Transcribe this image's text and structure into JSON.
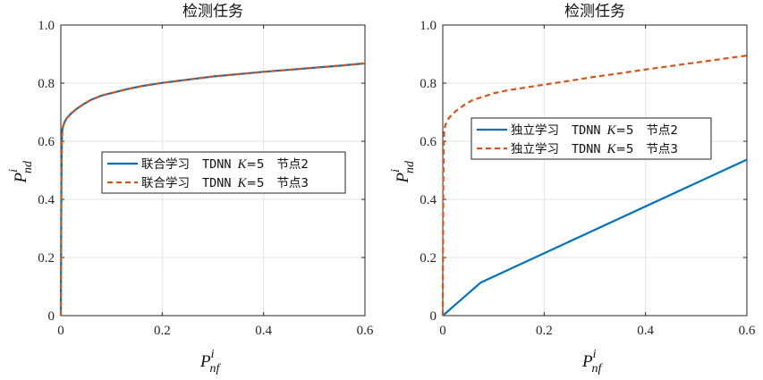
{
  "chart_data": [
    {
      "type": "line",
      "title": "检测任务",
      "xlabel": "P_nf^i",
      "ylabel": "P_nd^i",
      "xlim": [
        0,
        0.6
      ],
      "ylim": [
        0,
        1.0
      ],
      "xticks": [
        "0",
        "0.2",
        "0.4",
        "0.6"
      ],
      "xtick_values": [
        0,
        0.2,
        0.4,
        0.6
      ],
      "yticks": [
        "0",
        "0.2",
        "0.4",
        "0.6",
        "0.8",
        "1.0"
      ],
      "ytick_values": [
        0,
        0.2,
        0.4,
        0.6,
        0.8,
        1.0
      ],
      "grid": true,
      "legend_position": "center-right",
      "series": [
        {
          "name": "联合学习 TDNN K=5 节点2",
          "legend_parts": [
            "联合学习",
            "TDNN",
            "K",
            "=5",
            "节点2"
          ],
          "color": "#0072BD",
          "style": "solid",
          "x": [
            0,
            0.0005,
            0.001,
            0.002,
            0.003,
            0.005,
            0.008,
            0.012,
            0.02,
            0.03,
            0.045,
            0.06,
            0.08,
            0.1,
            0.13,
            0.16,
            0.2,
            0.25,
            0.3,
            0.35,
            0.4,
            0.45,
            0.5,
            0.55,
            0.6
          ],
          "y": [
            0,
            0.2,
            0.45,
            0.6,
            0.64,
            0.655,
            0.668,
            0.68,
            0.695,
            0.71,
            0.728,
            0.743,
            0.757,
            0.766,
            0.779,
            0.79,
            0.801,
            0.812,
            0.823,
            0.831,
            0.839,
            0.846,
            0.853,
            0.86,
            0.868
          ]
        },
        {
          "name": "联合学习 TDNN K=5 节点3",
          "legend_parts": [
            "联合学习",
            "TDNN",
            "K",
            "=5",
            "节点3"
          ],
          "color": "#D95319",
          "style": "dashed",
          "x": [
            0,
            0.0005,
            0.001,
            0.002,
            0.003,
            0.005,
            0.008,
            0.012,
            0.02,
            0.03,
            0.045,
            0.06,
            0.08,
            0.1,
            0.13,
            0.16,
            0.2,
            0.25,
            0.3,
            0.35,
            0.4,
            0.45,
            0.5,
            0.55,
            0.6
          ],
          "y": [
            0,
            0.2,
            0.45,
            0.6,
            0.64,
            0.655,
            0.668,
            0.68,
            0.695,
            0.71,
            0.728,
            0.743,
            0.757,
            0.766,
            0.779,
            0.79,
            0.801,
            0.812,
            0.823,
            0.831,
            0.839,
            0.846,
            0.853,
            0.86,
            0.868
          ]
        }
      ]
    },
    {
      "type": "line",
      "title": "检测任务",
      "xlabel": "P_nf^i",
      "ylabel": "P_nd^i",
      "xlim": [
        0,
        0.6
      ],
      "ylim": [
        0,
        1.0
      ],
      "xticks": [
        "0",
        "0.2",
        "0.4",
        "0.6"
      ],
      "xtick_values": [
        0,
        0.2,
        0.4,
        0.6
      ],
      "yticks": [
        "0",
        "0.2",
        "0.4",
        "0.6",
        "0.8",
        "1.0"
      ],
      "ytick_values": [
        0,
        0.2,
        0.4,
        0.6,
        0.8,
        1.0
      ],
      "grid": true,
      "legend_position": "upper-center",
      "series": [
        {
          "name": "独立学习 TDNN K=5 节点2",
          "legend_parts": [
            "独立学习",
            "TDNN",
            "K",
            "=5",
            "节点2"
          ],
          "color": "#0072BD",
          "style": "solid",
          "x": [
            0,
            0.075,
            0.6
          ],
          "y": [
            0,
            0.114,
            0.537
          ]
        },
        {
          "name": "独立学习 TDNN K=5 节点3",
          "legend_parts": [
            "独立学习",
            "TDNN",
            "K",
            "=5",
            "节点3"
          ],
          "color": "#D95319",
          "style": "dashed",
          "x": [
            0,
            0.0005,
            0.001,
            0.002,
            0.003,
            0.005,
            0.008,
            0.012,
            0.02,
            0.03,
            0.045,
            0.06,
            0.08,
            0.1,
            0.13,
            0.16,
            0.2,
            0.25,
            0.3,
            0.35,
            0.4,
            0.45,
            0.5,
            0.55,
            0.6
          ],
          "y": [
            0,
            0.2,
            0.45,
            0.6,
            0.64,
            0.655,
            0.668,
            0.68,
            0.695,
            0.71,
            0.728,
            0.743,
            0.753,
            0.765,
            0.776,
            0.784,
            0.795,
            0.808,
            0.822,
            0.834,
            0.847,
            0.859,
            0.871,
            0.883,
            0.895
          ]
        }
      ]
    }
  ]
}
